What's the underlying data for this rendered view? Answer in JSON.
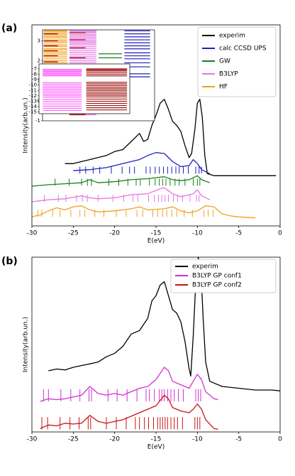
{
  "chart_data": [
    {
      "type": "line",
      "panel_label": "(a)",
      "xlabel": "E(eV)",
      "ylabel": "Intensity(arb.un.)",
      "xlim": [
        -30,
        0
      ],
      "xticks": [
        -30,
        -25,
        -20,
        -15,
        -10,
        -5,
        0
      ],
      "ylim": [
        0,
        10
      ],
      "legend": "upper right",
      "series": [
        {
          "name": "experim",
          "color": "#000000",
          "x": [
            -26,
            -25,
            -24,
            -23,
            -22,
            -21,
            -20,
            -19,
            -18,
            -17,
            -16.5,
            -16,
            -15.5,
            -15,
            -14.5,
            -14,
            -13.5,
            -13,
            -12.5,
            -12,
            -11.5,
            -11,
            -10.7,
            -10.3,
            -10,
            -9.7,
            -9.4,
            -9.1,
            -8.8,
            -8,
            -6,
            -4,
            -2,
            -0.5
          ],
          "values": [
            3.1,
            3.1,
            3.2,
            3.3,
            3.4,
            3.5,
            3.7,
            3.8,
            4.2,
            4.6,
            4.2,
            4.3,
            5.0,
            5.5,
            6.1,
            6.3,
            5.8,
            5.2,
            5.0,
            4.7,
            4.0,
            3.4,
            3.6,
            4.8,
            6.1,
            6.3,
            5.4,
            3.5,
            2.6,
            2.5,
            2.5,
            2.5,
            2.5,
            2.5
          ]
        },
        {
          "name": "calc CCSD UPS",
          "color": "#1f1fbf",
          "x": [
            -25,
            -23,
            -21,
            -19,
            -17,
            -16,
            -15,
            -14,
            -13,
            -12,
            -11,
            -10.5,
            -10,
            -9.5,
            -8.5
          ],
          "values": [
            2.75,
            2.8,
            2.9,
            3.1,
            3.3,
            3.5,
            3.65,
            3.6,
            3.2,
            2.95,
            3.0,
            3.3,
            3.1,
            2.8,
            2.6
          ]
        },
        {
          "name": "GW",
          "color": "#1a7f1a",
          "x": [
            -30,
            -28,
            -26,
            -24,
            -23,
            -22,
            -20,
            -18,
            -16,
            -15,
            -14,
            -13,
            -12,
            -11,
            -10,
            -9.5,
            -8.5
          ],
          "values": [
            1.98,
            2.05,
            2.1,
            2.15,
            2.3,
            2.15,
            2.2,
            2.3,
            2.35,
            2.4,
            2.45,
            2.3,
            2.25,
            2.3,
            2.5,
            2.3,
            2.15
          ]
        },
        {
          "name": "B3LYP",
          "color": "#e377e3",
          "x": [
            -30,
            -28,
            -26,
            -24,
            -23,
            -22,
            -20,
            -18,
            -16,
            -14.5,
            -14,
            -13,
            -12,
            -10.5,
            -10,
            -9.5,
            -8.5
          ],
          "values": [
            1.2,
            1.3,
            1.35,
            1.5,
            1.4,
            1.35,
            1.4,
            1.55,
            1.6,
            1.85,
            1.9,
            1.6,
            1.45,
            1.6,
            1.8,
            1.5,
            1.3
          ]
        },
        {
          "name": "HF",
          "color": "#f0a020",
          "x": [
            -30,
            -29,
            -28,
            -27,
            -26,
            -25,
            -24,
            -23,
            -22,
            -20,
            -18,
            -17,
            -16,
            -14,
            -13,
            -12,
            -11,
            -10,
            -9,
            -8,
            -7,
            -6,
            -5,
            -3
          ],
          "values": [
            0.45,
            0.55,
            0.75,
            0.9,
            0.8,
            0.95,
            1.0,
            0.8,
            0.7,
            0.75,
            0.85,
            0.95,
            0.8,
            0.85,
            0.95,
            0.75,
            0.65,
            0.75,
            1.0,
            0.95,
            0.6,
            0.5,
            0.45,
            0.4
          ]
        }
      ],
      "sticks": [
        {
          "color": "#1f1fbf",
          "base": 2.6,
          "top": 2.95,
          "positions": [
            -24.2,
            -23.5,
            -22.6,
            -21.8,
            -20.4,
            -19.1,
            -18.2,
            -17.6,
            -16.2,
            -15.7,
            -15.1,
            -14.6,
            -14.1,
            -13.6,
            -13.1,
            -12.6,
            -12.2,
            -11.7,
            -11.1,
            -10.2,
            -9.8,
            -9.5
          ]
        },
        {
          "color": "#1a7f1a",
          "base": 2.0,
          "top": 2.35,
          "positions": [
            -27.2,
            -25.5,
            -24,
            -23.3,
            -22.8,
            -20.7,
            -19.5,
            -18.4,
            -17.4,
            -16.9,
            -15.8,
            -15.1,
            -14.6,
            -14.2,
            -13.8,
            -13.3,
            -12.7,
            -12.2,
            -11.5,
            -10.5,
            -10,
            -9.7
          ]
        },
        {
          "color": "#e377e3",
          "base": 1.2,
          "top": 1.55,
          "positions": [
            -28.5,
            -26.8,
            -25.9,
            -24.6,
            -23.9,
            -23.3,
            -22,
            -20.2,
            -18.9,
            -17.8,
            -17.2,
            -15.9,
            -15.2,
            -14.7,
            -14.3,
            -13.9,
            -13.5,
            -12.9,
            -12.4,
            -11.8,
            -10.9,
            -10.1,
            -9.8
          ]
        },
        {
          "color": "#f0a020",
          "base": 0.45,
          "top": 0.8,
          "positions": [
            -29.3,
            -28.8,
            -27.5,
            -26.6,
            -25.3,
            -24.2,
            -23.6,
            -22.4,
            -21.3,
            -19.8,
            -18.6,
            -17.3,
            -16.6,
            -15.4,
            -14.8,
            -14.2,
            -13.7,
            -13.1,
            -12.5,
            -11.6,
            -10.6,
            -9.2,
            -8.7,
            -8.1
          ]
        }
      ],
      "inset": {
        "ylim": [
          -1,
          3.55
        ],
        "yticks": [
          -1,
          0,
          1,
          2,
          3
        ],
        "columns": [
          {
            "color": "#f0a020",
            "levels": [
              3.5,
              3.45,
              3.38,
              3.3,
              3.22,
              3.15,
              3.05,
              2.98,
              2.9,
              2.8,
              2.72,
              2.62,
              2.55,
              2.45,
              2.38,
              2.3,
              2.2,
              2.1,
              2.0,
              1.9,
              1.8,
              1.7,
              1.6,
              1.5,
              1.42,
              1.3,
              1.2,
              1.1,
              1.0,
              0.9,
              0.8,
              0.6,
              0.5,
              0.4,
              0.3,
              0.2,
              0.1,
              0.0
            ],
            "color2": "#b01010",
            "levels2": [
              3.35,
              3.0,
              2.75,
              2.5,
              2.25,
              1.95,
              1.65,
              1.35
            ]
          },
          {
            "color": "#e377e3",
            "levels": [
              3.5,
              3.45,
              3.4,
              3.32,
              3.25,
              3.18,
              3.1,
              3.02,
              2.95,
              2.88,
              2.8,
              2.7,
              2.6,
              2.5,
              2.4,
              2.3,
              2.2,
              2.1,
              2.0,
              1.9,
              1.8,
              1.7,
              1.6,
              1.5,
              1.4,
              1.3,
              1.2,
              1.1,
              1.0,
              0.9,
              0.8,
              0.7,
              0.6,
              0.5,
              0.4,
              0.3,
              0.2,
              0.1,
              0.0,
              -0.1,
              -0.3,
              -0.5,
              -0.65,
              -0.7
            ],
            "color2": "#b01010",
            "levels2": [
              3.4,
              3.05,
              2.65,
              2.15,
              1.55,
              0.95,
              0.45,
              -0.65,
              -0.7
            ]
          },
          {
            "color": "#1a7f1a",
            "levels": [
              2.35,
              2.15,
              1.65,
              1.2
            ]
          },
          {
            "color": "#1f1fbf",
            "levels": [
              3.5,
              3.35,
              3.2,
              3.05,
              2.9,
              2.75,
              2.6,
              2.4,
              2.25,
              2.1,
              1.9,
              1.7,
              1.35,
              1.2
            ]
          }
        ]
      }
    },
    {
      "type": "line",
      "panel_label": "(b)",
      "xlabel": "E(eV)",
      "ylabel": "Intensity(arb.un.)",
      "xlim": [
        -30,
        0
      ],
      "xticks": [
        -30,
        -25,
        -20,
        -15,
        -10,
        -5,
        0
      ],
      "ylim": [
        0,
        10
      ],
      "legend": "upper right",
      "series": [
        {
          "name": "experim",
          "color": "#000000",
          "x": [
            -28,
            -27,
            -26,
            -25,
            -24,
            -23,
            -22,
            -21,
            -20,
            -19,
            -18,
            -17,
            -16,
            -15.5,
            -15,
            -14.5,
            -14,
            -13.5,
            -13,
            -12.5,
            -12,
            -11.5,
            -11,
            -10.8,
            -10.5,
            -10.2,
            -9.9,
            -9.6,
            -9.3,
            -9,
            -8.5,
            -7,
            -5,
            -3,
            -1,
            0
          ],
          "values": [
            3.5,
            3.6,
            3.55,
            3.7,
            3.8,
            3.9,
            4.0,
            4.3,
            4.5,
            4.9,
            5.6,
            5.8,
            6.5,
            7.5,
            7.8,
            8.4,
            8.6,
            7.8,
            7.0,
            6.8,
            6.3,
            5.2,
            3.6,
            3.2,
            5.5,
            8.5,
            10,
            9.5,
            6.5,
            4.0,
            2.9,
            2.6,
            2.5,
            2.4,
            2.4,
            2.35
          ]
        },
        {
          "name": "B3LYP GP conf1",
          "color": "#d030d0",
          "x": [
            -29,
            -28,
            -27,
            -26,
            -25,
            -24,
            -23,
            -22,
            -21,
            -20,
            -19,
            -18,
            -17,
            -16,
            -15,
            -14,
            -13.5,
            -13,
            -12,
            -11,
            -10.5,
            -10,
            -9.5,
            -9,
            -8,
            -7.5
          ],
          "values": [
            1.75,
            1.9,
            1.85,
            1.9,
            2.0,
            2.1,
            2.6,
            2.2,
            2.1,
            2.2,
            2.1,
            2.3,
            2.5,
            2.6,
            3.0,
            3.7,
            3.5,
            2.9,
            2.7,
            2.5,
            2.9,
            3.3,
            3.0,
            2.3,
            1.9,
            1.85
          ]
        },
        {
          "name": "B3LYP GP conf2",
          "color": "#c81414",
          "x": [
            -29,
            -28,
            -27,
            -26,
            -25,
            -24,
            -23,
            -22,
            -21,
            -20,
            -19,
            -18,
            -17,
            -16,
            -15,
            -14,
            -13.5,
            -13,
            -12,
            -11,
            -10.5,
            -10,
            -9.5,
            -9,
            -8,
            -7.5
          ],
          "values": [
            0.2,
            0.4,
            0.35,
            0.5,
            0.45,
            0.5,
            0.95,
            0.6,
            0.5,
            0.6,
            0.7,
            0.9,
            1.1,
            1.3,
            1.5,
            2.1,
            1.9,
            1.4,
            1.2,
            1.1,
            1.3,
            1.6,
            1.3,
            0.7,
            0.2,
            0.15
          ]
        }
      ],
      "sticks": [
        {
          "color": "#d030d0",
          "base": 1.75,
          "top": 2.45,
          "positions": [
            -28.6,
            -28,
            -26.5,
            -25.3,
            -24.2,
            -23.1,
            -22.8,
            -20.8,
            -19.7,
            -18.5,
            -17.3,
            -16.2,
            -15.8,
            -15.2,
            -14.6,
            -14.3,
            -14.0,
            -13.6,
            -13.2,
            -12.8,
            -12.3,
            -11.7,
            -10.2,
            -9.9,
            -9.6
          ]
        },
        {
          "color": "#c81414",
          "base": 0.15,
          "top": 0.85,
          "positions": [
            -28.8,
            -28.1,
            -26.6,
            -25.4,
            -24.3,
            -23.2,
            -22.9,
            -21,
            -19.8,
            -18.6,
            -17.5,
            -17,
            -16.4,
            -15.9,
            -15.3,
            -14.8,
            -14.5,
            -14.2,
            -13.9,
            -13.6,
            -13.2,
            -12.8,
            -12.4,
            -11.8,
            -10.3,
            -10,
            -9.7
          ]
        }
      ],
      "inset": {
        "ylim": [
          -15.3,
          -6.1
        ],
        "y_inverted": true,
        "yticks": [
          -7,
          -8,
          -9,
          -10,
          -11,
          -12,
          -13,
          -14,
          -15
        ],
        "columns": [
          {
            "color": "#ff66ff",
            "levels": [
              -7.1,
              -7.3,
              -7.5,
              -7.7,
              -7.9,
              -8.1,
              -8.3,
              -9.6,
              -9.9,
              -10.2,
              -10.5,
              -10.8,
              -11.1,
              -11.4,
              -11.7,
              -12.0,
              -12.3,
              -12.7,
              -13.1,
              -13.5,
              -13.9,
              -14.3,
              -14.7
            ]
          },
          {
            "color": "#a01818",
            "levels": [
              -7.0,
              -7.2,
              -7.4,
              -7.7,
              -8.0,
              -8.3,
              -9.5,
              -9.8,
              -10.1,
              -10.4,
              -10.7,
              -11.0,
              -11.3,
              -11.6,
              -11.9,
              -12.2,
              -12.6,
              -13.0,
              -13.4,
              -13.8,
              -14.2,
              -14.6
            ]
          }
        ]
      }
    }
  ]
}
